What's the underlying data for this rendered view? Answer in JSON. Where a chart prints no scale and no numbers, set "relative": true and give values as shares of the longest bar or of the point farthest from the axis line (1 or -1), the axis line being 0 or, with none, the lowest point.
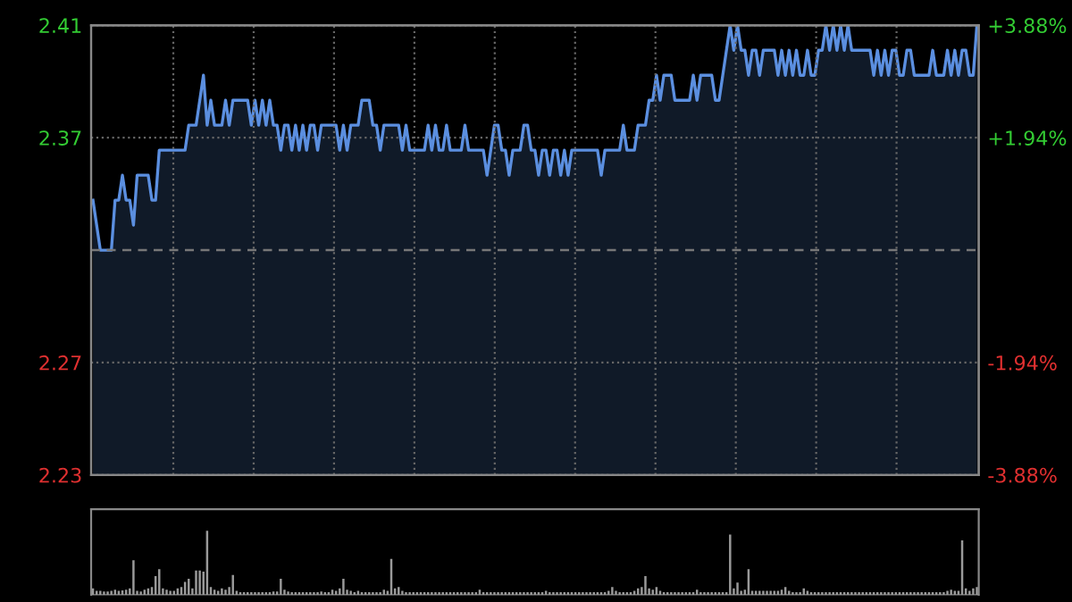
{
  "chart_data": [
    {
      "type": "area",
      "categories": [
        null,
        null,
        null,
        null,
        null,
        null,
        null,
        null,
        null,
        null,
        null,
        null,
        null,
        null,
        null,
        null,
        null,
        null,
        null,
        null,
        null,
        null,
        null,
        null,
        null,
        null,
        null,
        null,
        null,
        null,
        null,
        null,
        null,
        null,
        null,
        null,
        null,
        null,
        null,
        null,
        null,
        null,
        null,
        null,
        null,
        null,
        null,
        null,
        null,
        null,
        null,
        null,
        null,
        null,
        null,
        null,
        null,
        null,
        null,
        null,
        null,
        null,
        null,
        null,
        null,
        null,
        null,
        null,
        null,
        null,
        null,
        null,
        null,
        null,
        null,
        null,
        null,
        null,
        null,
        null,
        null,
        null,
        null,
        null,
        null,
        null,
        null,
        null,
        null,
        null,
        null,
        null,
        null,
        null,
        null,
        null,
        null,
        null,
        null,
        null,
        null,
        null,
        null,
        null,
        null,
        null,
        null,
        null,
        null,
        null,
        null,
        null,
        null,
        null,
        null,
        null,
        null,
        null,
        null,
        null,
        null,
        null,
        null,
        null,
        null,
        null,
        null,
        null,
        null,
        null,
        null,
        null,
        null,
        null,
        null,
        null,
        null,
        null,
        null,
        null,
        null,
        null,
        null,
        null,
        null,
        null,
        null,
        null,
        null,
        null,
        null,
        null,
        null,
        null,
        null,
        null,
        null,
        null,
        null,
        null,
        null,
        null,
        null,
        null,
        null,
        null,
        null,
        null,
        null,
        null,
        null,
        null,
        null,
        null,
        null,
        null,
        null,
        null,
        null,
        null,
        null,
        null,
        null,
        null,
        null,
        null,
        null,
        null,
        null,
        null,
        null,
        null,
        null,
        null,
        null,
        null,
        null,
        null,
        null,
        null,
        null,
        null,
        null,
        null,
        null,
        null,
        null,
        null,
        null,
        null,
        null,
        null,
        null,
        null,
        null,
        null,
        null,
        null,
        null,
        null,
        null,
        null,
        null,
        null,
        null,
        null,
        null,
        null,
        null,
        null,
        null,
        null,
        null,
        null,
        null,
        null,
        null,
        null,
        null,
        null,
        null
      ],
      "series": [
        {
          "color": "#5b8fe0",
          "values": [
            2.34,
            2.33,
            2.32,
            2.32,
            2.32,
            2.32,
            2.34,
            2.34,
            2.35,
            2.34,
            2.34,
            2.33,
            2.35,
            2.35,
            2.35,
            2.35,
            2.34,
            2.34,
            2.36,
            2.36,
            2.36,
            2.36,
            2.36,
            2.36,
            2.36,
            2.36,
            2.37,
            2.37,
            2.37,
            2.38,
            2.39,
            2.37,
            2.38,
            2.37,
            2.37,
            2.37,
            2.38,
            2.37,
            2.38,
            2.38,
            2.38,
            2.38,
            2.38,
            2.37,
            2.38,
            2.37,
            2.38,
            2.37,
            2.38,
            2.37,
            2.37,
            2.36,
            2.37,
            2.37,
            2.36,
            2.37,
            2.36,
            2.37,
            2.36,
            2.37,
            2.37,
            2.36,
            2.37,
            2.37,
            2.37,
            2.37,
            2.37,
            2.36,
            2.37,
            2.36,
            2.37,
            2.37,
            2.37,
            2.38,
            2.38,
            2.38,
            2.37,
            2.37,
            2.36,
            2.37,
            2.37,
            2.37,
            2.37,
            2.37,
            2.36,
            2.37,
            2.36,
            2.36,
            2.36,
            2.36,
            2.36,
            2.37,
            2.36,
            2.37,
            2.36,
            2.36,
            2.37,
            2.36,
            2.36,
            2.36,
            2.36,
            2.37,
            2.36,
            2.36,
            2.36,
            2.36,
            2.36,
            2.35,
            2.36,
            2.37,
            2.37,
            2.36,
            2.36,
            2.35,
            2.36,
            2.36,
            2.36,
            2.37,
            2.37,
            2.36,
            2.36,
            2.35,
            2.36,
            2.36,
            2.35,
            2.36,
            2.36,
            2.35,
            2.36,
            2.35,
            2.36,
            2.36,
            2.36,
            2.36,
            2.36,
            2.36,
            2.36,
            2.36,
            2.35,
            2.36,
            2.36,
            2.36,
            2.36,
            2.36,
            2.37,
            2.36,
            2.36,
            2.36,
            2.37,
            2.37,
            2.37,
            2.38,
            2.38,
            2.39,
            2.38,
            2.39,
            2.39,
            2.39,
            2.38,
            2.38,
            2.38,
            2.38,
            2.38,
            2.39,
            2.38,
            2.39,
            2.39,
            2.39,
            2.39,
            2.38,
            2.38,
            2.39,
            2.4,
            2.41,
            2.4,
            2.41,
            2.4,
            2.4,
            2.39,
            2.4,
            2.4,
            2.39,
            2.4,
            2.4,
            2.4,
            2.4,
            2.39,
            2.4,
            2.39,
            2.4,
            2.39,
            2.4,
            2.39,
            2.39,
            2.4,
            2.39,
            2.39,
            2.4,
            2.4,
            2.41,
            2.4,
            2.41,
            2.4,
            2.41,
            2.4,
            2.41,
            2.4,
            2.4,
            2.4,
            2.4,
            2.4,
            2.4,
            2.39,
            2.4,
            2.39,
            2.4,
            2.39,
            2.4,
            2.4,
            2.39,
            2.39,
            2.4,
            2.4,
            2.39,
            2.39,
            2.39,
            2.39,
            2.39,
            2.4,
            2.39,
            2.39,
            2.39,
            2.4,
            2.39,
            2.4,
            2.39,
            2.4,
            2.4,
            2.39,
            2.39,
            2.41
          ]
        }
      ],
      "ylim": [
        2.23,
        2.41
      ],
      "yticks": [
        2.41,
        {
          "value": 2.365,
          "label": "2.37"
        },
        {
          "value": 2.275,
          "label": "2.27"
        },
        2.23
      ],
      "y2lim": [
        -3.88,
        3.88
      ],
      "y2ticks": [
        {
          "value": 3.88,
          "label": "+3.88%"
        },
        {
          "value": 1.94,
          "label": "+1.94%"
        },
        {
          "value": -1.94,
          "label": "-1.94%"
        },
        {
          "value": -3.88,
          "label": "-3.88%"
        }
      ],
      "ref_lines": [
        {
          "axis": "y",
          "value": 2.32,
          "line_style": "dashed"
        }
      ],
      "grid": true,
      "tick_labels": "y"
    },
    {
      "type": "bar",
      "relative": true,
      "categories": [
        null,
        null,
        null,
        null,
        null,
        null,
        null,
        null,
        null,
        null,
        null,
        null,
        null,
        null,
        null,
        null,
        null,
        null,
        null,
        null,
        null,
        null,
        null,
        null,
        null,
        null,
        null,
        null,
        null,
        null,
        null,
        null,
        null,
        null,
        null,
        null,
        null,
        null,
        null,
        null,
        null,
        null,
        null,
        null,
        null,
        null,
        null,
        null,
        null,
        null,
        null,
        null,
        null,
        null,
        null,
        null,
        null,
        null,
        null,
        null,
        null,
        null,
        null,
        null,
        null,
        null,
        null,
        null,
        null,
        null,
        null,
        null,
        null,
        null,
        null,
        null,
        null,
        null,
        null,
        null,
        null,
        null,
        null,
        null,
        null,
        null,
        null,
        null,
        null,
        null,
        null,
        null,
        null,
        null,
        null,
        null,
        null,
        null,
        null,
        null,
        null,
        null,
        null,
        null,
        null,
        null,
        null,
        null,
        null,
        null,
        null,
        null,
        null,
        null,
        null,
        null,
        null,
        null,
        null,
        null,
        null,
        null,
        null,
        null,
        null,
        null,
        null,
        null,
        null,
        null,
        null,
        null,
        null,
        null,
        null,
        null,
        null,
        null,
        null,
        null,
        null,
        null,
        null,
        null,
        null,
        null,
        null,
        null,
        null,
        null,
        null,
        null,
        null,
        null,
        null,
        null,
        null,
        null,
        null,
        null,
        null,
        null,
        null,
        null,
        null,
        null,
        null,
        null,
        null,
        null,
        null,
        null,
        null,
        null,
        null,
        null,
        null,
        null,
        null,
        null,
        null,
        null,
        null,
        null,
        null,
        null,
        null,
        null,
        null,
        null,
        null,
        null,
        null,
        null,
        null,
        null,
        null,
        null,
        null,
        null,
        null,
        null,
        null,
        null,
        null,
        null,
        null,
        null,
        null,
        null,
        null,
        null,
        null,
        null,
        null,
        null,
        null,
        null,
        null,
        null,
        null,
        null,
        null,
        null,
        null,
        null,
        null,
        null,
        null,
        null,
        null,
        null,
        null,
        null,
        null,
        null,
        null,
        null,
        null,
        null,
        null
      ],
      "values": [
        0.1,
        0.06,
        0.06,
        0.05,
        0.05,
        0.06,
        0.08,
        0.06,
        0.07,
        0.08,
        0.1,
        0.54,
        0.06,
        0.05,
        0.08,
        0.1,
        0.12,
        0.29,
        0.4,
        0.1,
        0.08,
        0.06,
        0.06,
        0.1,
        0.12,
        0.2,
        0.25,
        0.1,
        0.38,
        0.38,
        0.36,
        1,
        0.12,
        0.08,
        0.06,
        0.1,
        0.08,
        0.12,
        0.31,
        0.06,
        0.04,
        0.04,
        0.04,
        0.04,
        0.04,
        0.04,
        0.04,
        0.04,
        0.04,
        0.05,
        0.05,
        0.25,
        0.08,
        0.05,
        0.04,
        0.04,
        0.04,
        0.04,
        0.04,
        0.04,
        0.04,
        0.04,
        0.05,
        0.04,
        0.04,
        0.08,
        0.06,
        0.1,
        0.25,
        0.08,
        0.06,
        0.04,
        0.06,
        0.04,
        0.04,
        0.04,
        0.04,
        0.04,
        0.04,
        0.08,
        0.06,
        0.56,
        0.1,
        0.12,
        0.06,
        0.04,
        0.04,
        0.04,
        0.04,
        0.04,
        0.04,
        0.04,
        0.04,
        0.04,
        0.04,
        0.04,
        0.04,
        0.04,
        0.04,
        0.04,
        0.04,
        0.04,
        0.04,
        0.04,
        0.04,
        0.08,
        0.04,
        0.04,
        0.04,
        0.04,
        0.04,
        0.04,
        0.04,
        0.04,
        0.04,
        0.04,
        0.04,
        0.04,
        0.04,
        0.04,
        0.04,
        0.04,
        0.04,
        0.06,
        0.04,
        0.04,
        0.04,
        0.04,
        0.04,
        0.04,
        0.04,
        0.04,
        0.04,
        0.04,
        0.04,
        0.04,
        0.04,
        0.04,
        0.04,
        0.04,
        0.06,
        0.12,
        0.06,
        0.04,
        0.04,
        0.04,
        0.04,
        0.06,
        0.1,
        0.12,
        0.29,
        0.1,
        0.08,
        0.12,
        0.06,
        0.04,
        0.04,
        0.04,
        0.04,
        0.04,
        0.04,
        0.04,
        0.04,
        0.04,
        0.08,
        0.04,
        0.04,
        0.04,
        0.04,
        0.04,
        0.04,
        0.04,
        0.04,
        0.94,
        0.1,
        0.19,
        0.06,
        0.08,
        0.4,
        0.06,
        0.06,
        0.06,
        0.06,
        0.06,
        0.06,
        0.06,
        0.06,
        0.08,
        0.12,
        0.06,
        0.04,
        0.04,
        0.04,
        0.1,
        0.06,
        0.04,
        0.04,
        0.04,
        0.04,
        0.04,
        0.04,
        0.04,
        0.04,
        0.04,
        0.04,
        0.04,
        0.04,
        0.04,
        0.04,
        0.04,
        0.04,
        0.04,
        0.04,
        0.04,
        0.04,
        0.04,
        0.04,
        0.04,
        0.04,
        0.04,
        0.04,
        0.04,
        0.04,
        0.04,
        0.04,
        0.04,
        0.04,
        0.04,
        0.04,
        0.04,
        0.04,
        0.04,
        0.06,
        0.08,
        0.06,
        0.06,
        0.85,
        0.1,
        0.06,
        0.1,
        0.12
      ],
      "color": "#9a9a9a",
      "grid": false,
      "tick_labels": false
    }
  ]
}
